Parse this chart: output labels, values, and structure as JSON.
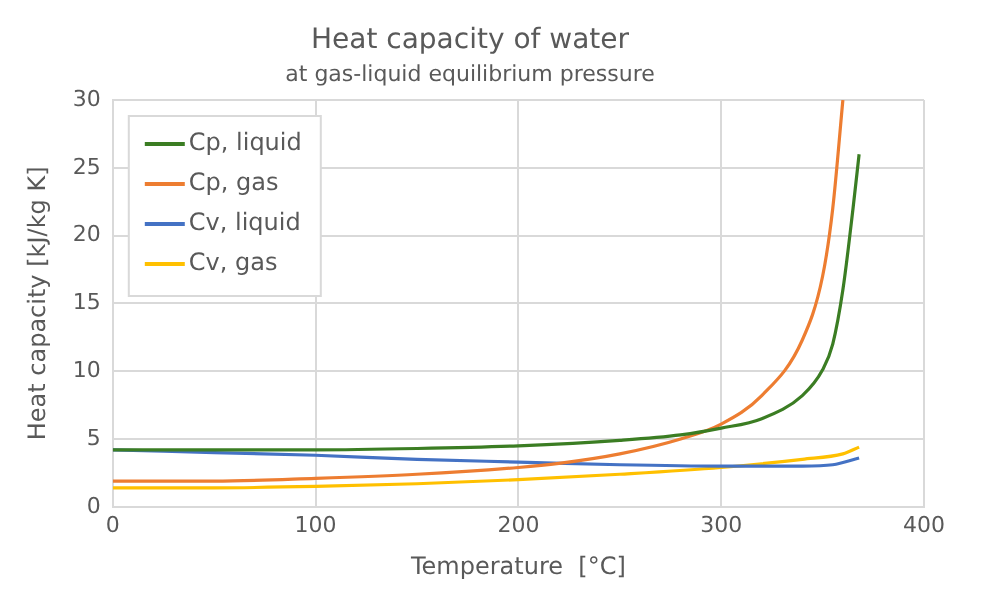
{
  "chart_data": {
    "type": "line",
    "title": "Heat capacity of water",
    "subtitle": "at gas-liquid equilibrium pressure",
    "xlabel": "Temperature  [°C]",
    "ylabel": "Heat capacity [kJ/kg K]",
    "xlim": [
      0,
      400
    ],
    "xticks": [
      0,
      100,
      200,
      300,
      400
    ],
    "ylim": [
      0,
      30
    ],
    "yticks": [
      0,
      5,
      10,
      15,
      20,
      25,
      30
    ],
    "grid": true,
    "legend": "top left",
    "marker": "none",
    "line_style": "solid",
    "series": [
      {
        "name": "Cp, liquid",
        "color": "#3b7d23",
        "x": [
          0,
          50,
          100,
          150,
          200,
          250,
          280,
          300,
          320,
          340,
          350,
          355,
          360,
          365,
          368
        ],
        "values": [
          4.2,
          4.2,
          4.2,
          4.3,
          4.5,
          4.9,
          5.3,
          5.8,
          6.5,
          8.2,
          10.1,
          12,
          16,
          22,
          26
        ]
      },
      {
        "name": "Cp, gas",
        "color": "#ed7d31",
        "x": [
          0,
          50,
          100,
          150,
          200,
          220,
          250,
          280,
          300,
          320,
          340,
          350,
          355,
          360
        ],
        "values": [
          1.9,
          1.9,
          2.1,
          2.4,
          2.9,
          3.2,
          3.9,
          5,
          6.1,
          8.2,
          12.3,
          17,
          22,
          30
        ]
      },
      {
        "name": "Cv, liquid",
        "color": "#4472c4",
        "x": [
          0,
          50,
          100,
          150,
          200,
          250,
          300,
          340,
          355,
          368
        ],
        "values": [
          4.2,
          4,
          3.8,
          3.5,
          3.3,
          3.1,
          3,
          3,
          3.1,
          3.6
        ]
      },
      {
        "name": "Cv, gas",
        "color": "#ffc000",
        "x": [
          0,
          50,
          100,
          150,
          200,
          250,
          300,
          340,
          360,
          368
        ],
        "values": [
          1.4,
          1.4,
          1.5,
          1.7,
          2,
          2.4,
          2.9,
          3.5,
          3.9,
          4.4
        ]
      }
    ]
  }
}
